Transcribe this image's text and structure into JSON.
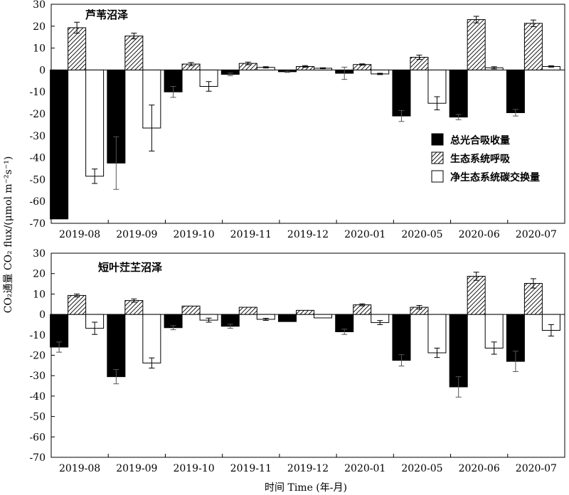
{
  "x_axis_title": "时间 Time (年-月)",
  "y_axis_title": "CO₂通量 CO₂ flux/(μmol m⁻²s⁻¹)",
  "chart_data": [
    {
      "type": "bar",
      "title": "芦苇沼泽",
      "categories": [
        "2019-08",
        "2019-09",
        "2019-10",
        "2019-11",
        "2019-12",
        "2020-01",
        "2020-05",
        "2020-06",
        "2020-07"
      ],
      "ylim": [
        -70,
        30
      ],
      "yticks": [
        -70,
        -60,
        -50,
        -40,
        -30,
        -20,
        -10,
        0,
        10,
        20,
        30
      ],
      "series": [
        {
          "name": "总光合吸收量",
          "pattern": "solid",
          "color": "#000000",
          "values": [
            -68,
            -42.5,
            -10,
            -2,
            -0.8,
            -1.5,
            -21,
            -21.5,
            -19.5
          ],
          "errors": [
            0,
            12,
            2.5,
            0.6,
            0.3,
            2.8,
            2.5,
            1.2,
            1.5
          ]
        },
        {
          "name": "生态系统呼吸",
          "pattern": "hatch",
          "color": "#000000",
          "values": [
            19.3,
            15.5,
            2.7,
            3.0,
            1.6,
            2.5,
            5.8,
            23,
            21.3
          ],
          "errors": [
            2.5,
            1.3,
            0.7,
            0.6,
            0.4,
            0.3,
            1.0,
            1.5,
            1.5
          ]
        },
        {
          "name": "净生态系统碳交换量",
          "pattern": "open",
          "color": "#000000",
          "values": [
            -48.5,
            -26.5,
            -7.5,
            1.2,
            0.8,
            -1.8,
            -15.2,
            1.0,
            1.6
          ],
          "errors": [
            3.3,
            10.5,
            2.2,
            0.3,
            0.2,
            0.3,
            3.0,
            0.5,
            0.3
          ]
        }
      ],
      "legend_position": "right"
    },
    {
      "type": "bar",
      "title": "短叶茳芏沼泽",
      "categories": [
        "2019-08",
        "2019-09",
        "2019-10",
        "2019-11",
        "2019-12",
        "2020-01",
        "2020-05",
        "2020-06",
        "2020-07"
      ],
      "ylim": [
        -70,
        30
      ],
      "yticks": [
        -70,
        -60,
        -50,
        -40,
        -30,
        -20,
        -10,
        0,
        10,
        20,
        30
      ],
      "series": [
        {
          "name": "总光合吸收量",
          "pattern": "solid",
          "color": "#000000",
          "values": [
            -16,
            -30.5,
            -6.5,
            -5.8,
            -3.5,
            -8.5,
            -22.5,
            -35.5,
            -23
          ],
          "errors": [
            2.5,
            3.5,
            1.0,
            1.0,
            0,
            1.3,
            2.8,
            5.0,
            5.0
          ]
        },
        {
          "name": "生态系统呼吸",
          "pattern": "hatch",
          "color": "#000000",
          "values": [
            9.3,
            6.8,
            4.1,
            3.5,
            2.0,
            4.7,
            3.5,
            18.7,
            15.2
          ],
          "errors": [
            0.7,
            0.8,
            0,
            0,
            0,
            0.5,
            0.9,
            2.0,
            2.3
          ]
        },
        {
          "name": "净生态系统碳交换量",
          "pattern": "open",
          "color": "#000000",
          "values": [
            -6.8,
            -23.8,
            -2.8,
            -2.4,
            -1.7,
            -4,
            -18.8,
            -16.5,
            -7.8
          ],
          "errors": [
            3.0,
            2.5,
            1.0,
            0.5,
            0,
            1.0,
            2.3,
            3.0,
            2.8
          ]
        }
      ]
    }
  ]
}
